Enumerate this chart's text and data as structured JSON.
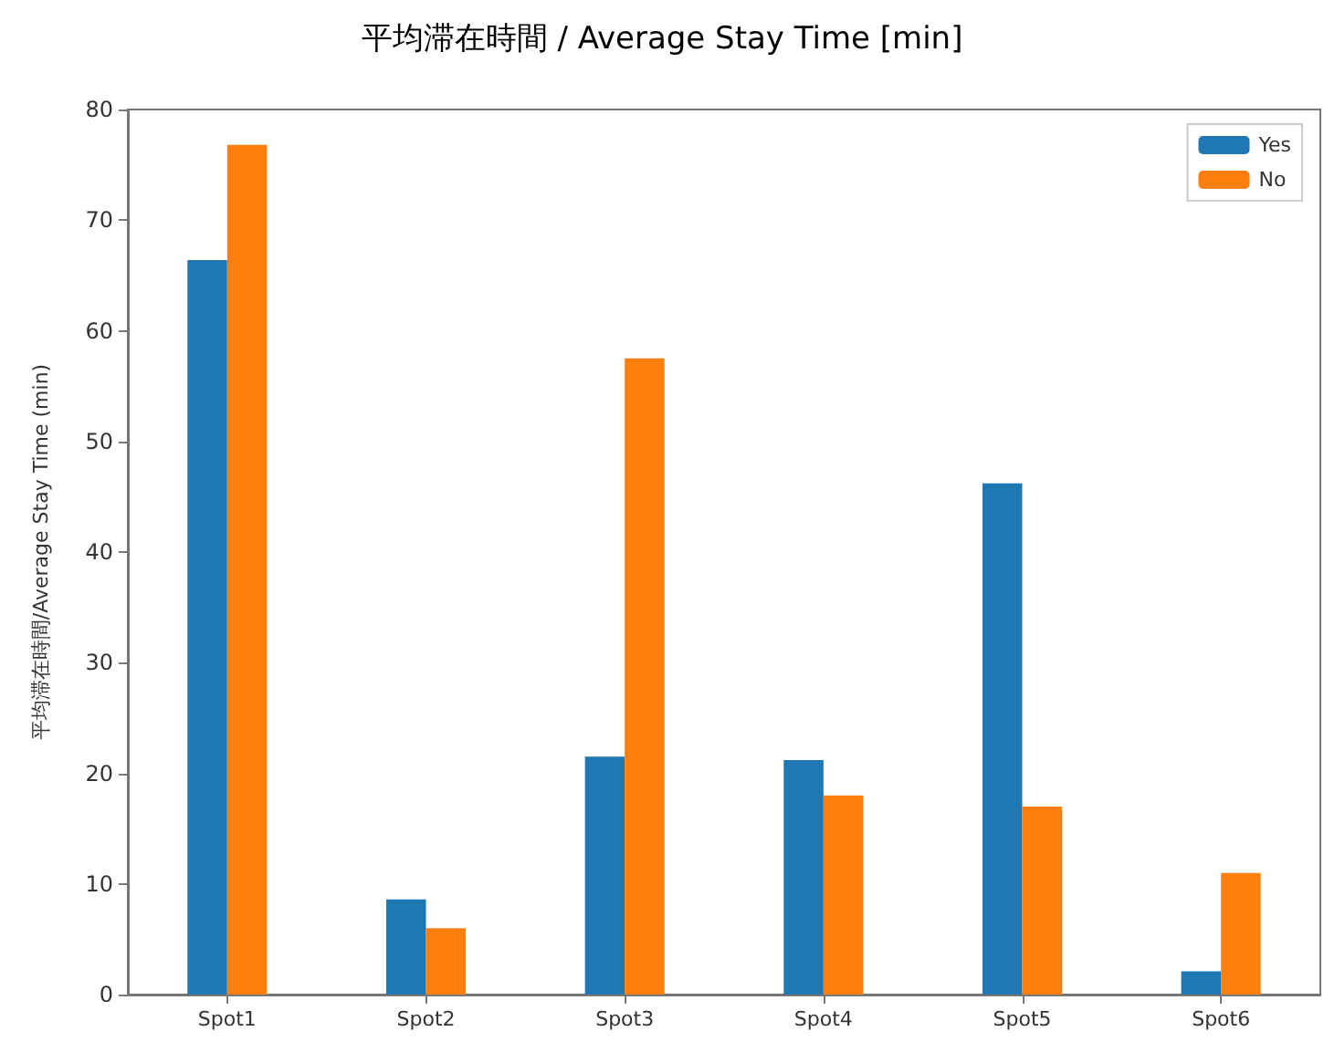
{
  "chart_data": {
    "type": "bar",
    "title": "平均滞在時間 / Average Stay Time [min]",
    "ylabel": "平均滞在時間/Average Stay Time (min)",
    "categories": [
      "Spot1",
      "Spot2",
      "Spot3",
      "Spot4",
      "Spot5",
      "Spot6"
    ],
    "series": [
      {
        "name": "Yes",
        "color": "#1f77b4",
        "values": [
          66.4,
          8.6,
          21.5,
          21.2,
          46.2,
          2.1
        ]
      },
      {
        "name": "No",
        "color": "#ff7f0e",
        "values": [
          76.8,
          6,
          57.5,
          18,
          17,
          11
        ]
      }
    ],
    "ylim": [
      0,
      80
    ],
    "yticks": [
      0,
      10,
      20,
      30,
      40,
      50,
      60,
      70,
      80
    ],
    "grid": false,
    "legend": "top right"
  }
}
